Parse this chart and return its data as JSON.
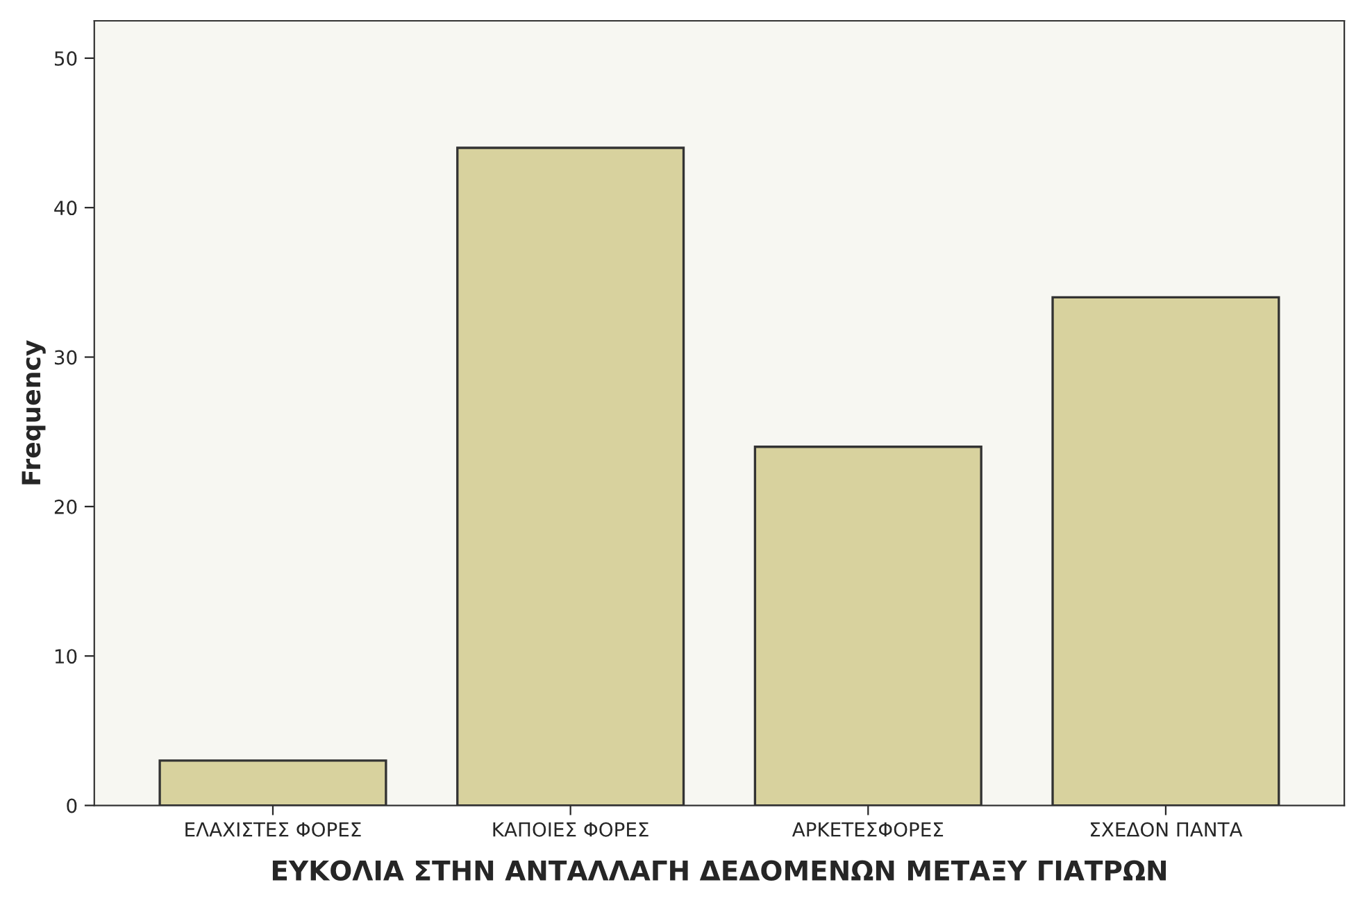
{
  "chart_data": {
    "type": "bar",
    "xlabel": "ΕΥΚΟΛΙΑ ΣΤΗΝ ΑΝΤΑΛΛΑΓΗ ΔΕΔΟΜΕΝΩΝ ΜΕΤΑΞΥ ΓΙΑΤΡΩΝ",
    "ylabel": "Frequency",
    "categories": [
      "ΕΛΑΧΙΣΤΕΣ ΦΟΡΕΣ",
      "ΚΑΠΟΙΕΣ ΦΟΡΕΣ",
      "ΑΡΚΕΤΕΣΦΟΡΕΣ",
      "ΣΧΕΔΟΝ ΠΑΝΤΑ"
    ],
    "values": [
      3,
      44,
      24,
      34
    ],
    "color": "#d8d29e",
    "ylim": [
      0,
      52.5
    ],
    "yticks": [
      0,
      10,
      20,
      30,
      40,
      50
    ],
    "grid": false
  }
}
